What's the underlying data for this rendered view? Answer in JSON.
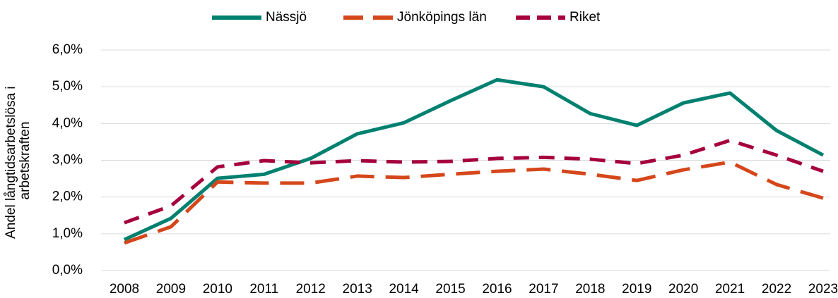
{
  "chart_data": {
    "type": "line",
    "y_label": [
      "Andel långtidsarbetslösa i",
      "arbetskraften"
    ],
    "categories": [
      "2008",
      "2009",
      "2010",
      "2011",
      "2012",
      "2013",
      "2014",
      "2015",
      "2016",
      "2017",
      "2018",
      "2019",
      "2020",
      "2021",
      "2022",
      "2023"
    ],
    "series": [
      {
        "name": "Nässjö",
        "color": "#00806f",
        "style": "solid",
        "values": [
          0.84,
          1.42,
          2.51,
          2.62,
          3.05,
          3.72,
          4.02,
          4.62,
          5.19,
          5.0,
          4.27,
          3.95,
          4.56,
          4.83,
          3.81,
          3.14
        ]
      },
      {
        "name": "Jönköpings län",
        "color": "#d5471b",
        "style": "long-dash",
        "values": [
          0.75,
          1.19,
          2.41,
          2.38,
          2.38,
          2.57,
          2.53,
          2.62,
          2.7,
          2.76,
          2.62,
          2.45,
          2.74,
          2.95,
          2.34,
          1.97
        ]
      },
      {
        "name": "Riket",
        "color": "#a5003d",
        "style": "dash",
        "values": [
          1.3,
          1.76,
          2.82,
          2.99,
          2.93,
          2.99,
          2.95,
          2.97,
          3.05,
          3.08,
          3.03,
          2.91,
          3.14,
          3.54,
          3.14,
          2.7
        ]
      }
    ],
    "ylim": [
      0,
      6
    ],
    "yticks": [
      {
        "value": 0,
        "label": "0,0%"
      },
      {
        "value": 1,
        "label": "1,0%"
      },
      {
        "value": 2,
        "label": "2,0%"
      },
      {
        "value": 3,
        "label": "3,0%"
      },
      {
        "value": 4,
        "label": "4,0%"
      },
      {
        "value": 5,
        "label": "5,0%"
      },
      {
        "value": 6,
        "label": "6,0%"
      }
    ],
    "grid": true,
    "legend": "top"
  }
}
